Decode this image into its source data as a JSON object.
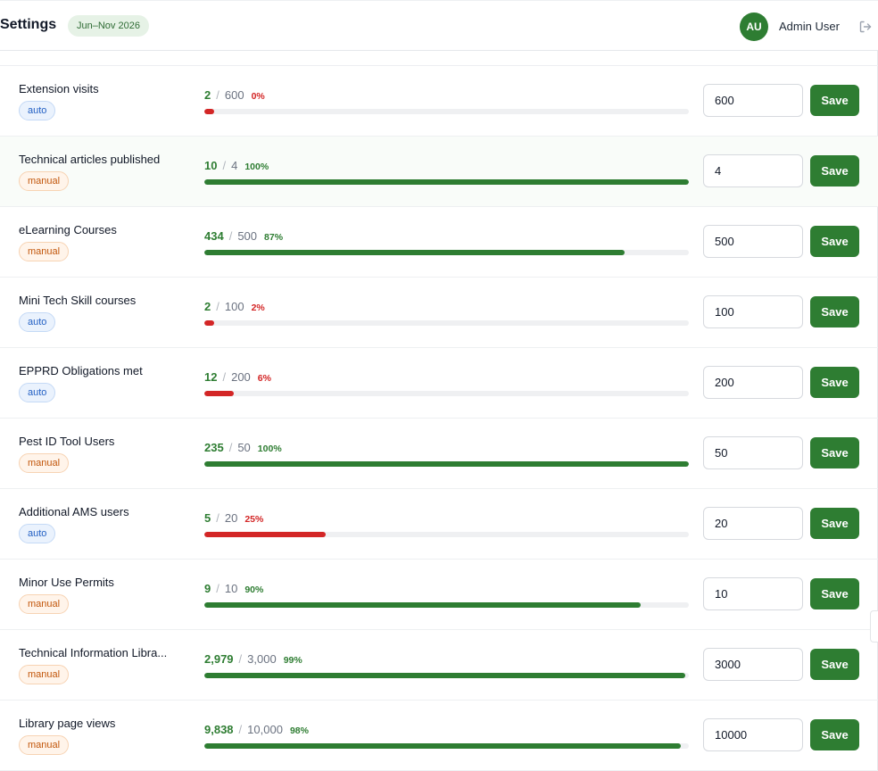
{
  "header": {
    "title": "Settings",
    "period": "Jun–Nov 2026",
    "user_initials": "AU",
    "user_name": "Admin User",
    "logout_icon": "logout-icon"
  },
  "colors": {
    "accent": "#2e7d32",
    "danger": "#d32626",
    "auto_badge": "#2461c4",
    "manual_badge": "#c2570c"
  },
  "metrics": [
    {
      "name": "Extension visits",
      "type": "auto",
      "actual": "2",
      "target": "600",
      "percent": "0%",
      "progress": 0.0033,
      "status": "bad",
      "input": "600",
      "save_label": "Save"
    },
    {
      "name": "Technical articles published",
      "type": "manual",
      "actual": "10",
      "target": "4",
      "percent": "100%",
      "progress": 1.0,
      "status": "good",
      "input": "4",
      "save_label": "Save"
    },
    {
      "name": "eLearning Courses",
      "type": "manual",
      "actual": "434",
      "target": "500",
      "percent": "87%",
      "progress": 0.868,
      "status": "good",
      "input": "500",
      "save_label": "Save"
    },
    {
      "name": "Mini Tech Skill courses",
      "type": "auto",
      "actual": "2",
      "target": "100",
      "percent": "2%",
      "progress": 0.02,
      "status": "bad",
      "input": "100",
      "save_label": "Save"
    },
    {
      "name": "EPPRD Obligations met",
      "type": "auto",
      "actual": "12",
      "target": "200",
      "percent": "6%",
      "progress": 0.06,
      "status": "bad",
      "input": "200",
      "save_label": "Save"
    },
    {
      "name": "Pest ID Tool Users",
      "type": "manual",
      "actual": "235",
      "target": "50",
      "percent": "100%",
      "progress": 1.0,
      "status": "good",
      "input": "50",
      "save_label": "Save"
    },
    {
      "name": "Additional AMS users",
      "type": "auto",
      "actual": "5",
      "target": "20",
      "percent": "25%",
      "progress": 0.25,
      "status": "bad",
      "input": "20",
      "save_label": "Save"
    },
    {
      "name": "Minor Use Permits",
      "type": "manual",
      "actual": "9",
      "target": "10",
      "percent": "90%",
      "progress": 0.9,
      "status": "good",
      "input": "10",
      "save_label": "Save"
    },
    {
      "name": "Technical Information Libra...",
      "type": "manual",
      "actual": "2,979",
      "target": "3,000",
      "percent": "99%",
      "progress": 0.993,
      "status": "good",
      "input": "3000",
      "save_label": "Save"
    },
    {
      "name": "Library page views",
      "type": "manual",
      "actual": "9,838",
      "target": "10,000",
      "percent": "98%",
      "progress": 0.9838,
      "status": "good",
      "input": "10000",
      "save_label": "Save"
    }
  ]
}
